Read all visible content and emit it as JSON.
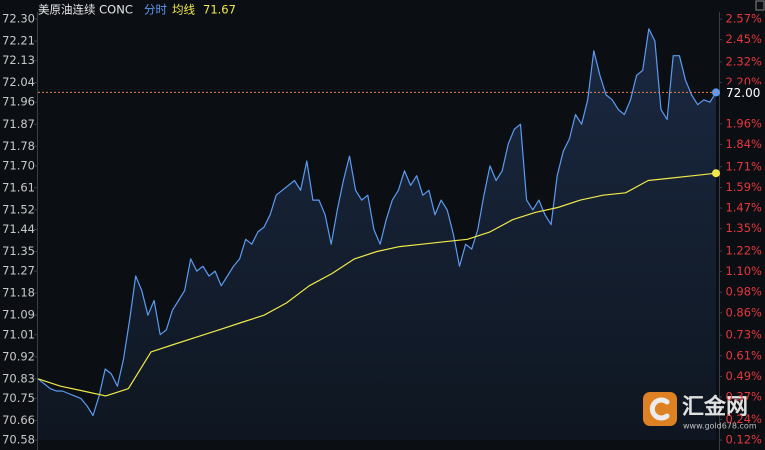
{
  "chart_data": {
    "type": "line",
    "title": "美原油连续 CONC",
    "ylim": [
      70.58,
      72.3
    ],
    "yticks": [
      {
        "value": 72.3,
        "label": "72.30"
      },
      72.21,
      72.13,
      72.04,
      71.96,
      71.87,
      71.78,
      {
        "value": 71.7,
        "label": "71.70"
      },
      71.61,
      71.52,
      71.44,
      71.35,
      71.27,
      71.18,
      71.09,
      71.01,
      70.92,
      70.83,
      70.75,
      70.66,
      70.58
    ],
    "y2lim": [
      0.12,
      2.57
    ],
    "y2ticks": [
      {
        "value": 2.57,
        "label": "2.57%"
      },
      {
        "value": 2.45,
        "label": "2.45%"
      },
      {
        "value": 2.32,
        "label": "2.32%"
      },
      {
        "value": 2.2,
        "label": "2.20%"
      },
      {
        "value": 1.96,
        "label": "1.96%"
      },
      {
        "value": 1.84,
        "label": "1.84%"
      },
      {
        "value": 1.71,
        "label": "1.71%"
      },
      {
        "value": 1.59,
        "label": "1.59%"
      },
      {
        "value": 1.47,
        "label": "1.47%"
      },
      {
        "value": 1.35,
        "label": "1.35%"
      },
      {
        "value": 1.22,
        "label": "1.22%"
      },
      {
        "value": 1.1,
        "label": "1.10%"
      },
      {
        "value": 0.98,
        "label": "0.98%"
      },
      {
        "value": 0.86,
        "label": "0.86%"
      },
      {
        "value": 0.73,
        "label": "0.73%"
      },
      {
        "value": 0.61,
        "label": "0.61%"
      },
      {
        "value": 0.49,
        "label": "0.49%"
      },
      {
        "value": 0.37,
        "label": "0.37%"
      },
      {
        "value": 0.24,
        "label": "0.24%"
      },
      {
        "value": 0.12,
        "label": "0.12%"
      }
    ],
    "current_price": {
      "value": 72.0,
      "label": "72.00"
    },
    "series": [
      {
        "name": "分时",
        "color": "#5b9bf0",
        "values": [
          70.83,
          70.81,
          70.79,
          70.78,
          70.78,
          70.77,
          70.76,
          70.75,
          70.72,
          70.68,
          70.76,
          70.87,
          70.85,
          70.8,
          70.91,
          71.07,
          71.25,
          71.19,
          71.09,
          71.15,
          71.01,
          71.03,
          71.11,
          71.15,
          71.19,
          71.32,
          71.27,
          71.29,
          71.25,
          71.27,
          71.21,
          71.25,
          71.29,
          71.32,
          71.4,
          71.38,
          71.43,
          71.45,
          71.5,
          71.58,
          71.6,
          71.62,
          71.64,
          71.6,
          71.72,
          71.56,
          71.56,
          71.5,
          71.38,
          71.52,
          71.64,
          71.74,
          71.6,
          71.56,
          71.58,
          71.44,
          71.38,
          71.48,
          71.56,
          71.6,
          71.68,
          71.62,
          71.66,
          71.58,
          71.6,
          71.5,
          71.56,
          71.52,
          71.42,
          71.29,
          71.38,
          71.36,
          71.44,
          71.58,
          71.7,
          71.64,
          71.68,
          71.79,
          71.85,
          71.87,
          71.56,
          71.52,
          71.56,
          71.5,
          71.46,
          71.66,
          71.76,
          71.81,
          71.91,
          71.87,
          71.97,
          72.17,
          72.07,
          71.99,
          71.97,
          71.93,
          71.91,
          71.97,
          72.07,
          72.09,
          72.26,
          72.21,
          71.93,
          71.89,
          72.15,
          72.15,
          72.05,
          71.99,
          71.95,
          71.97,
          71.96,
          72.0
        ]
      },
      {
        "name": "均线",
        "color": "#f0e94a",
        "values": [
          70.83,
          70.8,
          70.78,
          70.76,
          70.79,
          70.94,
          70.97,
          71.0,
          71.03,
          71.06,
          71.09,
          71.14,
          71.21,
          71.26,
          71.32,
          71.35,
          71.37,
          71.38,
          71.39,
          71.4,
          71.43,
          71.48,
          71.51,
          71.53,
          71.56,
          71.58,
          71.59,
          71.64,
          71.65,
          71.66,
          71.67
        ]
      }
    ],
    "watermark": {
      "name": "汇金网",
      "url": "www.gold678.com"
    }
  }
}
